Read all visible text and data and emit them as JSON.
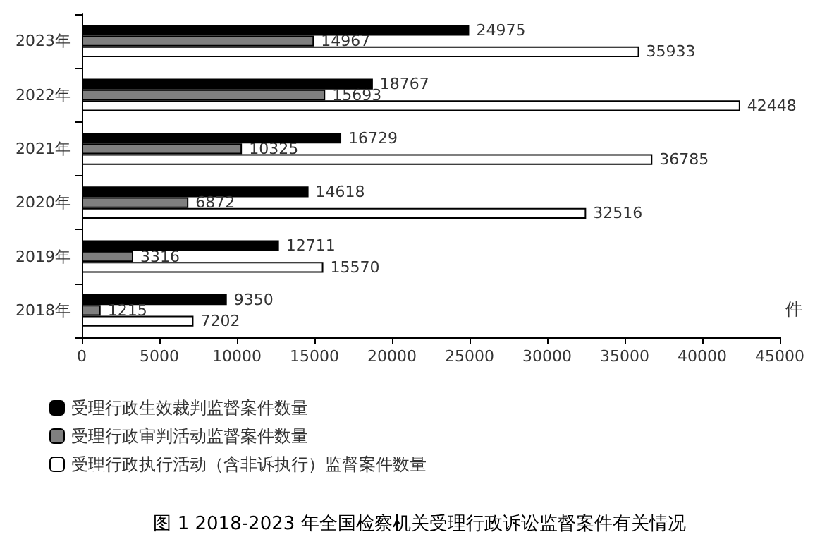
{
  "chart_data": {
    "type": "bar",
    "orientation": "horizontal",
    "title": "图 1 2018-2023 年全国检察机关受理行政诉讼监督案件有关情况",
    "xlabel": "件",
    "categories": [
      "2023年",
      "2022年",
      "2021年",
      "2020年",
      "2019年",
      "2018年"
    ],
    "series": [
      {
        "name": "受理行政生效裁判监督案件数量",
        "color": "#000000",
        "values": [
          24975,
          18767,
          16729,
          14618,
          12711,
          9350
        ]
      },
      {
        "name": "受理行政审判活动监督案件数量",
        "color": "#7f7f7f",
        "values": [
          14967,
          15693,
          10325,
          6872,
          3316,
          1215
        ]
      },
      {
        "name": "受理行政执行活动（含非诉执行）监督案件数量",
        "color": "#ffffff",
        "values": [
          35933,
          42448,
          36785,
          32516,
          15570,
          7202
        ]
      }
    ],
    "xlim": [
      0,
      45000
    ],
    "xticks": [
      0,
      5000,
      10000,
      15000,
      20000,
      25000,
      30000,
      35000,
      40000,
      45000
    ],
    "data_labels": true,
    "grid": false,
    "legend": "bottom left"
  }
}
